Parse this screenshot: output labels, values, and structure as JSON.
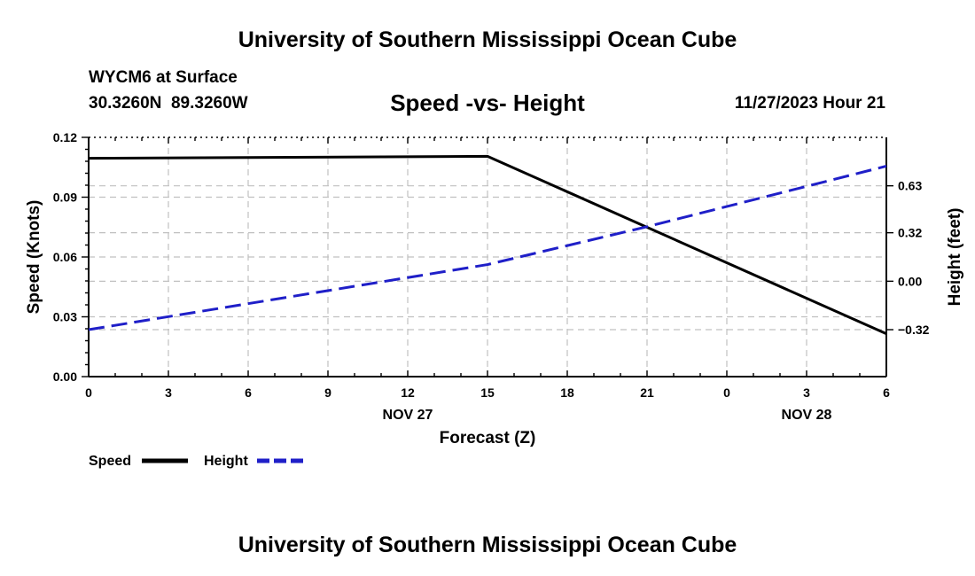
{
  "header": {
    "title": "University of Southern Mississippi Ocean Cube",
    "station": "WYCM6 at Surface",
    "coords": "30.3260N  89.3260W",
    "plot_title": "Speed -vs- Height",
    "date_time": "11/27/2023 Hour 21"
  },
  "footer": {
    "title": "University of Southern Mississippi Ocean Cube"
  },
  "colors": {
    "speed": "#000000",
    "height": "#1f1fc8",
    "grid": "#c0c0c0"
  },
  "chart_data": {
    "type": "line",
    "xlabel": "Forecast (Z)",
    "ylabel": "Speed (Knots)",
    "y2label": "Height (feet)",
    "x_ticks": [
      "0",
      "3",
      "6",
      "9",
      "12",
      "15",
      "18",
      "21",
      "0",
      "3",
      "6"
    ],
    "x_hours": [
      0,
      3,
      6,
      9,
      12,
      15,
      18,
      21,
      24,
      27,
      30
    ],
    "xlim": [
      0,
      30
    ],
    "date_labels": [
      {
        "label": "NOV 27",
        "hour": 12
      },
      {
        "label": "NOV 28",
        "hour": 27
      }
    ],
    "ylim": [
      0,
      0.12
    ],
    "y_ticks": [
      0.0,
      0.03,
      0.06,
      0.09,
      0.12
    ],
    "y_tick_labels": [
      "0.00",
      "0.03",
      "0.06",
      "0.09",
      "0.12"
    ],
    "y2lim": [
      -0.63,
      0.95
    ],
    "y2_ticks": [
      -0.32,
      0.0,
      0.32,
      0.63
    ],
    "y2_tick_labels": [
      "−0.32",
      "0.00",
      "0.32",
      "0.63"
    ],
    "grid": true,
    "legend": "bottom-left",
    "series": [
      {
        "name": "Speed",
        "axis": "left",
        "style": "solid",
        "x": [
          0,
          15,
          30
        ],
        "values": [
          0.1095,
          0.1105,
          0.0215
        ]
      },
      {
        "name": "Height",
        "axis": "right",
        "style": "dashed",
        "x": [
          0,
          15,
          21,
          30
        ],
        "values": [
          -0.32,
          0.11,
          0.36,
          0.76
        ]
      }
    ]
  }
}
